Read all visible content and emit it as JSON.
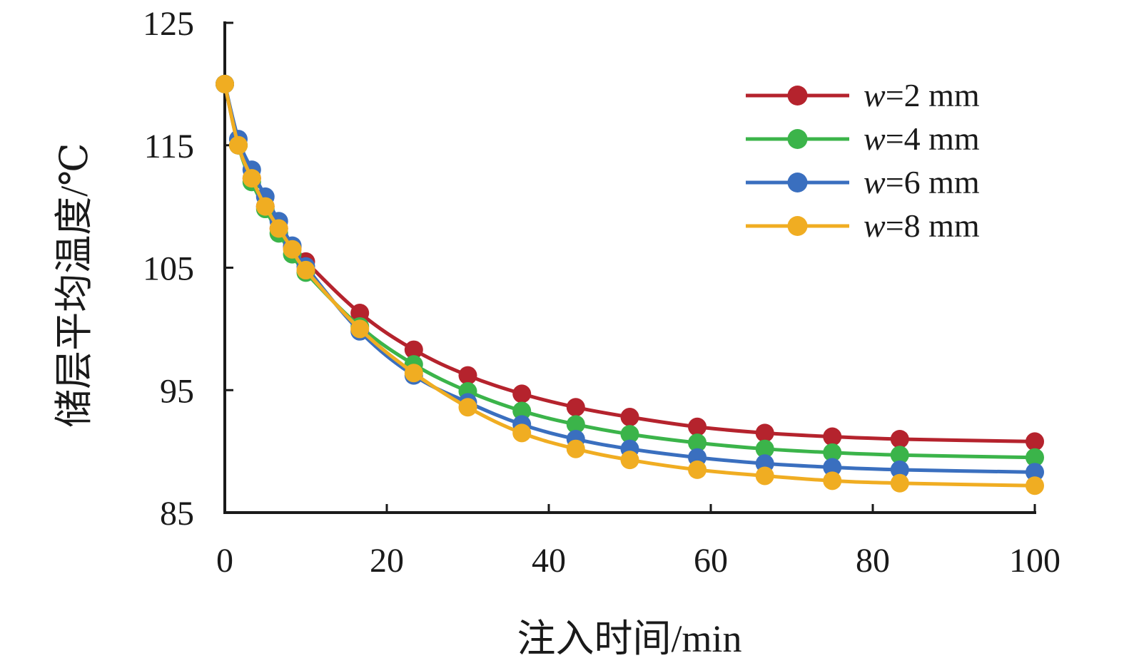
{
  "chart_data": {
    "type": "line",
    "xlabel": "注入时间/min",
    "ylabel": "储层平均温度/℃",
    "xlim": [
      0,
      100
    ],
    "ylim": [
      85,
      125
    ],
    "xticks": [
      0,
      20,
      40,
      60,
      80,
      100
    ],
    "yticks": [
      85,
      95,
      105,
      115,
      125
    ],
    "legend_position": "top-right",
    "grid": false,
    "series": [
      {
        "name": "=2 mm",
        "name_prefix": "w",
        "color": "#b5232d",
        "points": [
          [
            0,
            120
          ],
          [
            1.67,
            115
          ],
          [
            3.33,
            112.3
          ],
          [
            5,
            110
          ],
          [
            6.67,
            108.2
          ],
          [
            8.33,
            106.7
          ],
          [
            10,
            105.5
          ],
          [
            16.67,
            101.3
          ],
          [
            23.33,
            98.3
          ],
          [
            30,
            96.2
          ],
          [
            36.67,
            94.7
          ],
          [
            43.33,
            93.6
          ],
          [
            50,
            92.8
          ],
          [
            58.33,
            92
          ],
          [
            66.67,
            91.5
          ],
          [
            75,
            91.2
          ],
          [
            83.33,
            91
          ],
          [
            100,
            90.8
          ]
        ]
      },
      {
        "name": "=4 mm",
        "name_prefix": "w",
        "color": "#3bb44a",
        "points": [
          [
            0,
            120
          ],
          [
            1.67,
            115
          ],
          [
            3.33,
            112
          ],
          [
            5,
            109.8
          ],
          [
            6.67,
            107.8
          ],
          [
            8.33,
            106.1
          ],
          [
            10,
            104.6
          ],
          [
            16.67,
            100.2
          ],
          [
            23.33,
            97.1
          ],
          [
            30,
            94.9
          ],
          [
            36.67,
            93.3
          ],
          [
            43.33,
            92.2
          ],
          [
            50,
            91.4
          ],
          [
            58.33,
            90.7
          ],
          [
            66.67,
            90.2
          ],
          [
            75,
            89.9
          ],
          [
            83.33,
            89.7
          ],
          [
            100,
            89.5
          ]
        ]
      },
      {
        "name": "=6 mm",
        "name_prefix": "w",
        "color": "#3a6fbf",
        "points": [
          [
            0,
            120
          ],
          [
            1.67,
            115.5
          ],
          [
            3.33,
            113
          ],
          [
            5,
            110.8
          ],
          [
            6.67,
            108.8
          ],
          [
            8.33,
            106.8
          ],
          [
            10,
            105.1
          ],
          [
            16.67,
            99.8
          ],
          [
            23.33,
            96.2
          ],
          [
            30,
            94
          ],
          [
            36.67,
            92.2
          ],
          [
            43.33,
            91
          ],
          [
            50,
            90.2
          ],
          [
            58.33,
            89.5
          ],
          [
            66.67,
            89
          ],
          [
            75,
            88.7
          ],
          [
            83.33,
            88.5
          ],
          [
            100,
            88.3
          ]
        ]
      },
      {
        "name": "=8 mm",
        "name_prefix": "w",
        "color": "#f0ad22",
        "points": [
          [
            0,
            120
          ],
          [
            1.67,
            115
          ],
          [
            3.33,
            112.3
          ],
          [
            5,
            110
          ],
          [
            6.67,
            108.2
          ],
          [
            8.33,
            106.5
          ],
          [
            10,
            104.8
          ],
          [
            16.67,
            100
          ],
          [
            23.33,
            96.4
          ],
          [
            30,
            93.6
          ],
          [
            36.67,
            91.5
          ],
          [
            43.33,
            90.2
          ],
          [
            50,
            89.3
          ],
          [
            58.33,
            88.5
          ],
          [
            66.67,
            88
          ],
          [
            75,
            87.6
          ],
          [
            83.33,
            87.4
          ],
          [
            100,
            87.2
          ]
        ]
      }
    ]
  }
}
